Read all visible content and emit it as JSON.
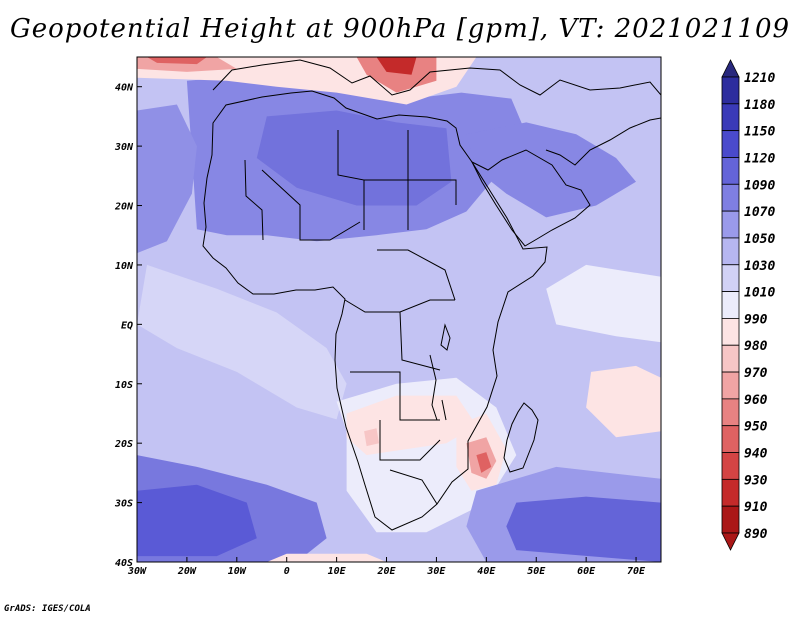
{
  "title": "Geopotential Height at 900hPa [gpm], VT: 2021021109",
  "credit": "GrADS: IGES/COLA",
  "map": {
    "lon_range": [
      -30,
      75
    ],
    "lat_range": [
      -40,
      45
    ],
    "x_ticks": [
      {
        "lon": -30,
        "label": "30W"
      },
      {
        "lon": -20,
        "label": "20W"
      },
      {
        "lon": -10,
        "label": "10W"
      },
      {
        "lon": 0,
        "label": "0"
      },
      {
        "lon": 10,
        "label": "10E"
      },
      {
        "lon": 20,
        "label": "20E"
      },
      {
        "lon": 30,
        "label": "30E"
      },
      {
        "lon": 40,
        "label": "40E"
      },
      {
        "lon": 50,
        "label": "50E"
      },
      {
        "lon": 60,
        "label": "60E"
      },
      {
        "lon": 70,
        "label": "70E"
      }
    ],
    "y_ticks": [
      {
        "lat": 40,
        "label": "40N"
      },
      {
        "lat": 30,
        "label": "30N"
      },
      {
        "lat": 20,
        "label": "20N"
      },
      {
        "lat": 10,
        "label": "10N"
      },
      {
        "lat": 0,
        "label": "EQ"
      },
      {
        "lat": -10,
        "label": "10S"
      },
      {
        "lat": -20,
        "label": "20S"
      },
      {
        "lat": -30,
        "label": "30S"
      },
      {
        "lat": -40,
        "label": "40S"
      }
    ]
  },
  "colorbar": {
    "levels": [
      "1210",
      "1180",
      "1150",
      "1120",
      "1090",
      "1070",
      "1050",
      "1030",
      "1010",
      "990",
      "980",
      "970",
      "960",
      "950",
      "940",
      "930",
      "910",
      "890"
    ],
    "colors": [
      "#28287d",
      "#2d2d9e",
      "#3a3ab8",
      "#4a4acc",
      "#6464d8",
      "#7f7fe2",
      "#9a9aea",
      "#b6b6f0",
      "#d2d2f6",
      "#ececfb",
      "#fde4e4",
      "#f7c6c6",
      "#f0a4a4",
      "#e88282",
      "#df6262",
      "#d44444",
      "#c42a2a",
      "#aa1717"
    ]
  },
  "field": {
    "base_color": "#c3c3f3",
    "regions": [
      {
        "name": "north-africa-high",
        "color": "#8787e4",
        "points": [
          [
            -20,
            41
          ],
          [
            -6,
            42
          ],
          [
            10,
            40
          ],
          [
            25,
            38
          ],
          [
            35,
            39
          ],
          [
            45,
            38
          ],
          [
            48,
            32
          ],
          [
            42,
            25
          ],
          [
            36,
            19
          ],
          [
            28,
            16
          ],
          [
            18,
            15
          ],
          [
            6,
            14
          ],
          [
            -4,
            15
          ],
          [
            -12,
            15
          ],
          [
            -18,
            16
          ]
        ]
      },
      {
        "name": "sahara-core",
        "color": "#7272dc",
        "points": [
          [
            -4,
            35
          ],
          [
            10,
            36
          ],
          [
            22,
            34
          ],
          [
            32,
            33
          ],
          [
            33,
            24
          ],
          [
            26,
            20
          ],
          [
            14,
            20
          ],
          [
            2,
            23
          ],
          [
            -6,
            28
          ]
        ]
      },
      {
        "name": "arabia",
        "color": "#8787e4",
        "points": [
          [
            36,
            32
          ],
          [
            48,
            34
          ],
          [
            58,
            32
          ],
          [
            66,
            28
          ],
          [
            70,
            24
          ],
          [
            62,
            20
          ],
          [
            52,
            18
          ],
          [
            44,
            22
          ],
          [
            38,
            26
          ]
        ]
      },
      {
        "name": "atlantic-east",
        "color": "#9090e6",
        "points": [
          [
            -30,
            36
          ],
          [
            -22,
            37
          ],
          [
            -18,
            30
          ],
          [
            -19,
            22
          ],
          [
            -24,
            14
          ],
          [
            -30,
            12
          ]
        ]
      },
      {
        "name": "atlantic-tropics",
        "color": "#d6d6f7",
        "points": [
          [
            -28,
            10
          ],
          [
            -14,
            6
          ],
          [
            -2,
            2
          ],
          [
            8,
            -4
          ],
          [
            12,
            -10
          ],
          [
            10,
            -16
          ],
          [
            2,
            -14
          ],
          [
            -10,
            -8
          ],
          [
            -22,
            -4
          ],
          [
            -30,
            0
          ]
        ]
      },
      {
        "name": "south-atlantic-high",
        "color": "#7878de",
        "points": [
          [
            -30,
            -22
          ],
          [
            -18,
            -24
          ],
          [
            -4,
            -27
          ],
          [
            6,
            -30
          ],
          [
            8,
            -36
          ],
          [
            2,
            -40
          ],
          [
            -30,
            -40
          ]
        ]
      },
      {
        "name": "south-atlantic-core",
        "color": "#5a5ad6",
        "points": [
          [
            -30,
            -28
          ],
          [
            -18,
            -27
          ],
          [
            -8,
            -30
          ],
          [
            -6,
            -36
          ],
          [
            -14,
            -39
          ],
          [
            -30,
            -39
          ]
        ]
      },
      {
        "name": "southern-africa-low",
        "color": "#ececfb",
        "points": [
          [
            10,
            -13
          ],
          [
            22,
            -10
          ],
          [
            34,
            -9
          ],
          [
            42,
            -14
          ],
          [
            46,
            -22
          ],
          [
            40,
            -30
          ],
          [
            28,
            -35
          ],
          [
            18,
            -35
          ],
          [
            12,
            -28
          ],
          [
            12,
            -18
          ]
        ]
      },
      {
        "name": "kalahari-low",
        "color": "#fde4e4",
        "points": [
          [
            12,
            -15
          ],
          [
            22,
            -12
          ],
          [
            34,
            -12
          ],
          [
            38,
            -17
          ],
          [
            32,
            -20
          ],
          [
            24,
            -21
          ],
          [
            16,
            -22
          ],
          [
            12,
            -19
          ]
        ]
      },
      {
        "name": "mozambique-low",
        "color": "#fde4e4",
        "points": [
          [
            34,
            -17
          ],
          [
            40,
            -15
          ],
          [
            44,
            -21
          ],
          [
            42,
            -27
          ],
          [
            37,
            -28
          ],
          [
            34,
            -24
          ]
        ]
      },
      {
        "name": "mozambique-low-2",
        "color": "#f0a4a4",
        "points": [
          [
            36,
            -20
          ],
          [
            40,
            -19
          ],
          [
            42,
            -23
          ],
          [
            40,
            -26
          ],
          [
            37,
            -25
          ]
        ]
      },
      {
        "name": "mozambique-low-3",
        "color": "#df6262",
        "points": [
          [
            38,
            -22
          ],
          [
            40,
            -21.5
          ],
          [
            41,
            -24
          ],
          [
            39,
            -25
          ]
        ]
      },
      {
        "name": "angola-low",
        "color": "#f7c6c6",
        "points": [
          [
            15.5,
            -18
          ],
          [
            18,
            -17.5
          ],
          [
            18.5,
            -20
          ],
          [
            16,
            -20.5
          ]
        ]
      },
      {
        "name": "indian-ocean-low",
        "color": "#fde4e4",
        "points": [
          [
            61,
            -8
          ],
          [
            70,
            -7
          ],
          [
            75,
            -9
          ],
          [
            75,
            -18
          ],
          [
            66,
            -19
          ],
          [
            60,
            -14
          ]
        ]
      },
      {
        "name": "south-indian-ring",
        "color": "#9a9aea",
        "points": [
          [
            38,
            -28
          ],
          [
            54,
            -24
          ],
          [
            75,
            -26
          ],
          [
            75,
            -40
          ],
          [
            40,
            -40
          ],
          [
            36,
            -34
          ]
        ]
      },
      {
        "name": "south-indian-high",
        "color": "#6464d8",
        "points": [
          [
            46,
            -30
          ],
          [
            60,
            -29
          ],
          [
            75,
            -30
          ],
          [
            75,
            -40
          ],
          [
            46,
            -38
          ],
          [
            44,
            -34
          ]
        ]
      },
      {
        "name": "indian-ocean-east",
        "color": "#ececfb",
        "points": [
          [
            54,
            0
          ],
          [
            66,
            -2
          ],
          [
            75,
            -3
          ],
          [
            75,
            8
          ],
          [
            60,
            10
          ],
          [
            52,
            6
          ]
        ]
      },
      {
        "name": "mediterranean-low-1",
        "color": "#fde4e4",
        "points": [
          [
            -30,
            45
          ],
          [
            10,
            45
          ],
          [
            30,
            45
          ],
          [
            38,
            45
          ],
          [
            34,
            40
          ],
          [
            24,
            37
          ],
          [
            10,
            39
          ],
          [
            -2,
            40
          ],
          [
            -12,
            41
          ],
          [
            -30,
            41.5
          ]
        ]
      },
      {
        "name": "mediterranean-low-2",
        "color": "#f0a4a4",
        "points": [
          [
            -30,
            45
          ],
          [
            -14,
            45
          ],
          [
            -10,
            43
          ],
          [
            -20,
            42.5
          ],
          [
            -30,
            43
          ]
        ]
      },
      {
        "name": "mediterranean-low-3",
        "color": "#df6262",
        "points": [
          [
            -28,
            45
          ],
          [
            -16,
            45
          ],
          [
            -18,
            43.8
          ],
          [
            -26,
            44
          ]
        ]
      },
      {
        "name": "balkan-low",
        "color": "#e88282",
        "points": [
          [
            14,
            45
          ],
          [
            30,
            45
          ],
          [
            30,
            41
          ],
          [
            22,
            39
          ],
          [
            16,
            42
          ]
        ]
      },
      {
        "name": "balkan-low-core",
        "color": "#c42a2a",
        "points": [
          [
            18,
            45
          ],
          [
            26,
            45
          ],
          [
            25,
            42
          ],
          [
            20,
            42.5
          ]
        ]
      },
      {
        "name": "south-edge-low",
        "color": "#fde4e4",
        "points": [
          [
            -4,
            -40
          ],
          [
            20,
            -40
          ],
          [
            16,
            -38.6
          ],
          [
            0,
            -38.6
          ]
        ]
      }
    ]
  }
}
